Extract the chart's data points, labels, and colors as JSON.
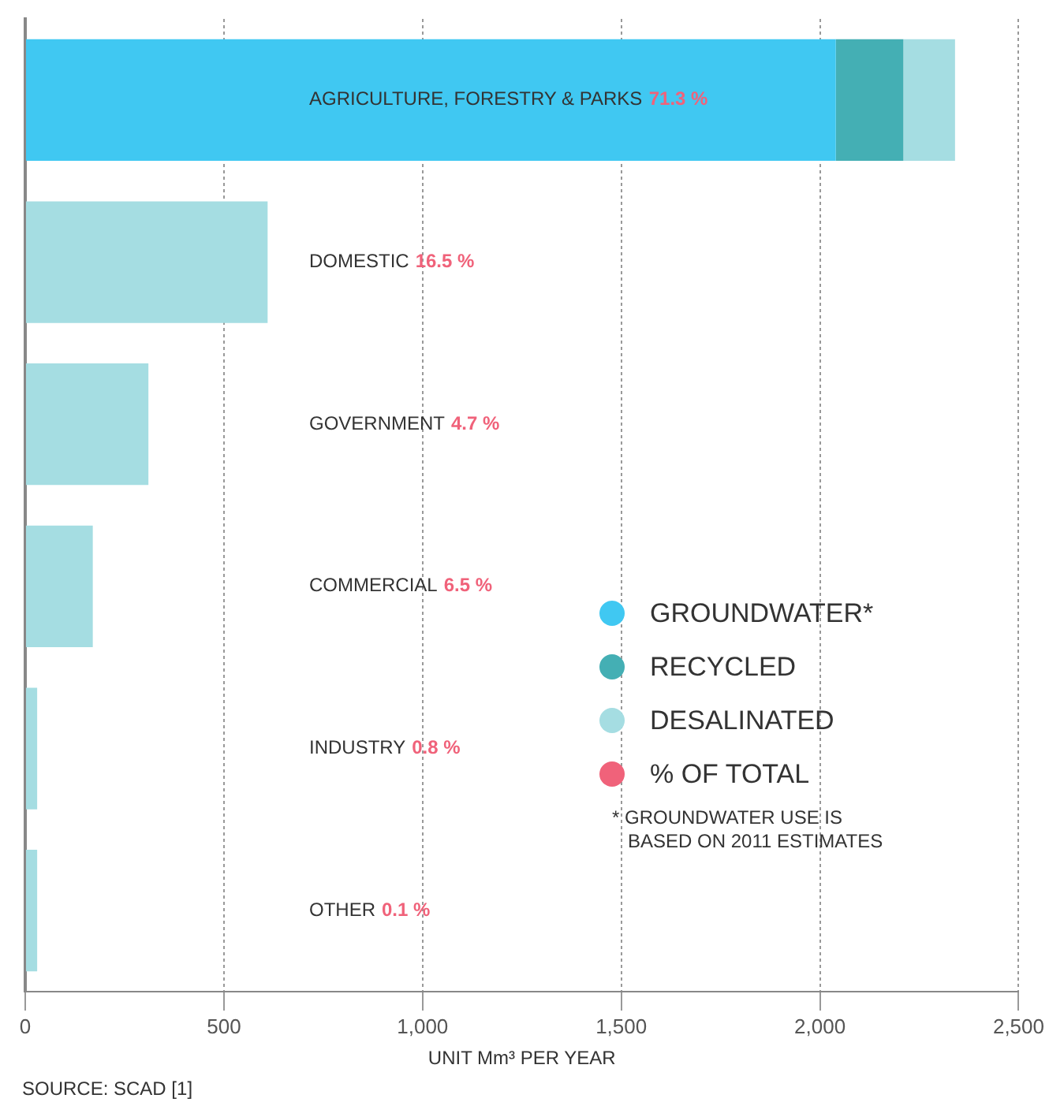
{
  "chart_data": {
    "type": "bar",
    "orientation": "horizontal",
    "stacked": true,
    "categories": [
      "AGRICULTURE, FORESTRY & PARKS",
      "DOMESTIC",
      "GOVERNMENT",
      "COMMERCIAL",
      "INDUSTRY",
      "OTHER"
    ],
    "series": [
      {
        "name": "GROUNDWATER*",
        "color": "#40c8f2",
        "values": [
          2040,
          null,
          null,
          null,
          null,
          null
        ]
      },
      {
        "name": "RECYCLED",
        "color": "#44afb4",
        "values": [
          170,
          null,
          null,
          null,
          null,
          null
        ]
      },
      {
        "name": "DESALINATED",
        "color": "#a5dde2",
        "values": [
          130,
          610,
          310,
          170,
          30,
          30
        ]
      },
      {
        "name": "% OF TOTAL",
        "color": "#f0627a",
        "values": [
          null,
          null,
          null,
          null,
          null,
          null
        ],
        "value_labels": [
          "71.3 %",
          "16.5 %",
          "4.7 %",
          "6.5 %",
          "0.8 %",
          "0.1 %"
        ]
      }
    ],
    "xlabel": "UNIT Mm³ PER YEAR",
    "xlim": [
      0,
      2500
    ],
    "xticks": [
      0,
      500,
      {
        "value": 1000,
        "label": "1,000"
      },
      {
        "value": 1500,
        "label": "1,500"
      },
      {
        "value": 2000,
        "label": "2,000"
      },
      {
        "value": 2500,
        "label": "2,500"
      }
    ],
    "grid": "x",
    "legend": "bottom right",
    "annotations": [
      "* GROUNDWATER USE IS\n   BASED ON 2011 ESTIMATES",
      "SOURCE: SCAD [1]"
    ]
  }
}
